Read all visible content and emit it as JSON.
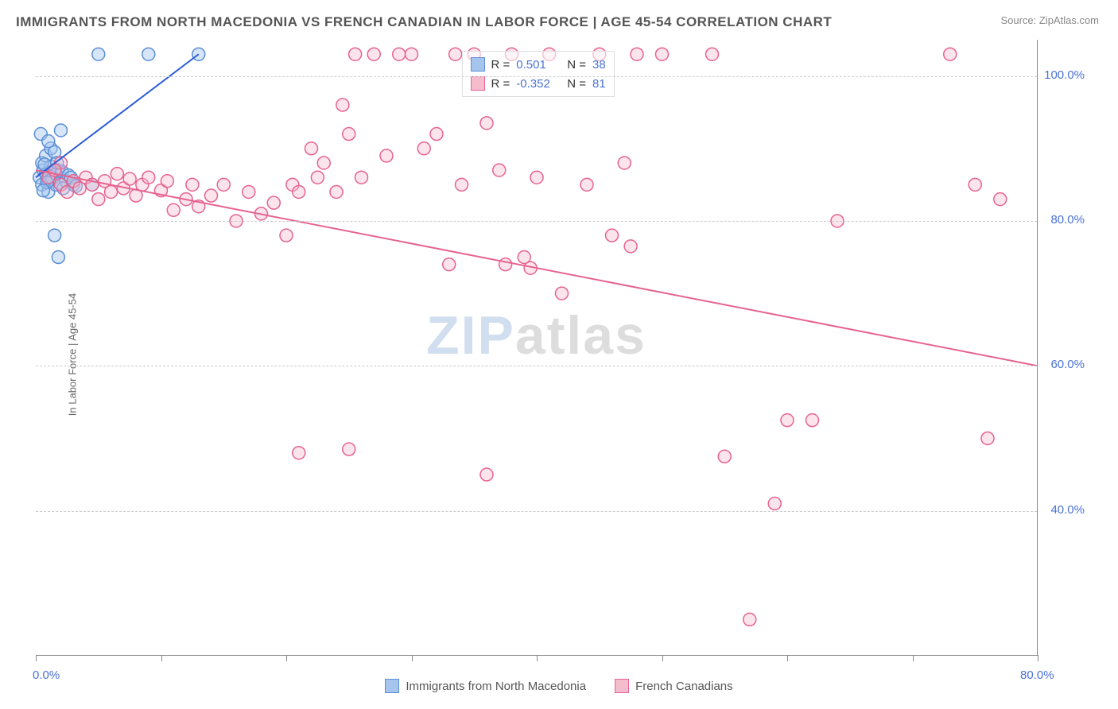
{
  "title": "IMMIGRANTS FROM NORTH MACEDONIA VS FRENCH CANADIAN IN LABOR FORCE | AGE 45-54 CORRELATION CHART",
  "source_label": "Source: ZipAtlas.com",
  "ylabel": "In Labor Force | Age 45-54",
  "watermark": {
    "part1": "ZIP",
    "part2": "atlas"
  },
  "chart": {
    "type": "scatter",
    "background_color": "#ffffff",
    "grid_color": "#cccccc",
    "axis_color": "#888888",
    "label_color": "#4a72d4",
    "xlim": [
      0,
      80
    ],
    "ylim": [
      20,
      105
    ],
    "yticks": [
      40,
      60,
      80,
      100
    ],
    "ytick_labels": [
      "40.0%",
      "60.0%",
      "80.0%",
      "100.0%"
    ],
    "xticks": [
      0,
      10,
      20,
      30,
      40,
      50,
      60,
      70,
      80
    ],
    "xtick_labels": {
      "0": "0.0%",
      "80": "80.0%"
    },
    "legend_top": {
      "rows": [
        {
          "swatch_fill": "#a5c5ee",
          "swatch_stroke": "#5b8fd6",
          "r_label": "R =",
          "r_value": "0.501",
          "n_label": "N =",
          "n_value": "38"
        },
        {
          "swatch_fill": "#f5bccd",
          "swatch_stroke": "#e6638f",
          "r_label": "R =",
          "r_value": "-0.352",
          "n_label": "N =",
          "n_value": "81"
        }
      ]
    },
    "legend_bottom": [
      {
        "swatch_fill": "#a5c5ee",
        "swatch_stroke": "#5b8fd6",
        "label": "Immigrants from North Macedonia"
      },
      {
        "swatch_fill": "#f5bccd",
        "swatch_stroke": "#e6638f",
        "label": "French Canadians"
      }
    ],
    "series": [
      {
        "name": "macedonia",
        "marker_fill": "rgba(165,197,238,0.45)",
        "marker_stroke": "#5b8fd6",
        "marker_r": 8,
        "line_color": "#2a5bd7",
        "line_width": 2,
        "regression": {
          "x1": 0,
          "y1": 86,
          "x2": 13,
          "y2": 103
        },
        "points": [
          [
            0.3,
            86
          ],
          [
            0.5,
            85
          ],
          [
            0.6,
            87
          ],
          [
            0.8,
            86.5
          ],
          [
            1.0,
            85.5
          ],
          [
            1.2,
            87.5
          ],
          [
            1.0,
            84
          ],
          [
            1.4,
            86
          ],
          [
            1.6,
            85
          ],
          [
            1.8,
            87
          ],
          [
            0.5,
            88
          ],
          [
            0.8,
            89
          ],
          [
            1.2,
            90
          ],
          [
            1.5,
            89.5
          ],
          [
            1.1,
            86.2
          ],
          [
            1.3,
            85.8
          ],
          [
            1.6,
            86.5
          ],
          [
            1.9,
            85.2
          ],
          [
            2.1,
            86.8
          ],
          [
            2.4,
            85.5
          ],
          [
            0.4,
            92
          ],
          [
            1.0,
            91
          ],
          [
            2.0,
            92.5
          ],
          [
            5.0,
            103
          ],
          [
            9.0,
            103
          ],
          [
            13.0,
            103
          ],
          [
            1.5,
            78
          ],
          [
            1.8,
            75
          ],
          [
            4.5,
            85
          ],
          [
            2.2,
            84.5
          ],
          [
            2.6,
            86.3
          ],
          [
            3.0,
            85
          ],
          [
            0.7,
            87.8
          ],
          [
            0.9,
            85.3
          ],
          [
            1.7,
            88
          ],
          [
            2.8,
            86
          ],
          [
            3.2,
            84.8
          ],
          [
            0.6,
            84.2
          ]
        ]
      },
      {
        "name": "french",
        "marker_fill": "rgba(245,188,205,0.40)",
        "marker_stroke": "#e6638f",
        "marker_r": 8,
        "line_color": "#e6638f",
        "line_width": 2,
        "regression": {
          "x1": 0,
          "y1": 87,
          "x2": 80,
          "y2": 60
        },
        "points": [
          [
            1,
            86
          ],
          [
            2,
            85
          ],
          [
            2.5,
            84
          ],
          [
            3,
            85.5
          ],
          [
            3.5,
            84.5
          ],
          [
            4,
            86
          ],
          [
            4.5,
            85
          ],
          [
            5,
            83
          ],
          [
            5.5,
            85.5
          ],
          [
            6,
            84
          ],
          [
            6.5,
            86.5
          ],
          [
            7,
            84.5
          ],
          [
            7.5,
            85.8
          ],
          [
            8,
            83.5
          ],
          [
            8.5,
            85
          ],
          [
            9,
            86
          ],
          [
            10,
            84.2
          ],
          [
            10.5,
            85.5
          ],
          [
            11,
            81.5
          ],
          [
            12,
            83
          ],
          [
            12.5,
            85
          ],
          [
            13,
            82
          ],
          [
            14,
            83.5
          ],
          [
            15,
            85
          ],
          [
            16,
            80
          ],
          [
            17,
            84
          ],
          [
            18,
            81
          ],
          [
            19,
            82.5
          ],
          [
            20,
            78
          ],
          [
            20.5,
            85
          ],
          [
            21,
            84
          ],
          [
            22,
            90
          ],
          [
            22.5,
            86
          ],
          [
            23,
            88
          ],
          [
            24,
            84
          ],
          [
            24.5,
            96
          ],
          [
            25,
            92
          ],
          [
            25.5,
            103
          ],
          [
            26,
            86
          ],
          [
            27,
            103
          ],
          [
            28,
            89
          ],
          [
            29,
            103
          ],
          [
            30,
            103
          ],
          [
            31,
            90
          ],
          [
            32,
            92
          ],
          [
            33,
            74
          ],
          [
            33.5,
            103
          ],
          [
            34,
            85
          ],
          [
            35,
            103
          ],
          [
            36,
            93.5
          ],
          [
            37,
            87
          ],
          [
            37.5,
            74
          ],
          [
            38,
            103
          ],
          [
            39,
            75
          ],
          [
            39.5,
            73.5
          ],
          [
            40,
            86
          ],
          [
            41,
            103
          ],
          [
            42,
            70
          ],
          [
            44,
            85
          ],
          [
            45,
            103
          ],
          [
            46,
            78
          ],
          [
            47,
            88
          ],
          [
            47.5,
            76.5
          ],
          [
            48,
            103
          ],
          [
            50,
            103
          ],
          [
            54,
            103
          ],
          [
            55,
            47.5
          ],
          [
            57,
            25
          ],
          [
            59,
            41
          ],
          [
            60,
            52.5
          ],
          [
            62,
            52.5
          ],
          [
            64,
            80
          ],
          [
            73,
            103
          ],
          [
            75,
            85
          ],
          [
            76,
            50
          ],
          [
            77,
            83
          ],
          [
            2,
            88
          ],
          [
            1.5,
            87
          ],
          [
            21,
            48
          ],
          [
            25,
            48.5
          ],
          [
            36,
            45
          ]
        ]
      }
    ]
  }
}
